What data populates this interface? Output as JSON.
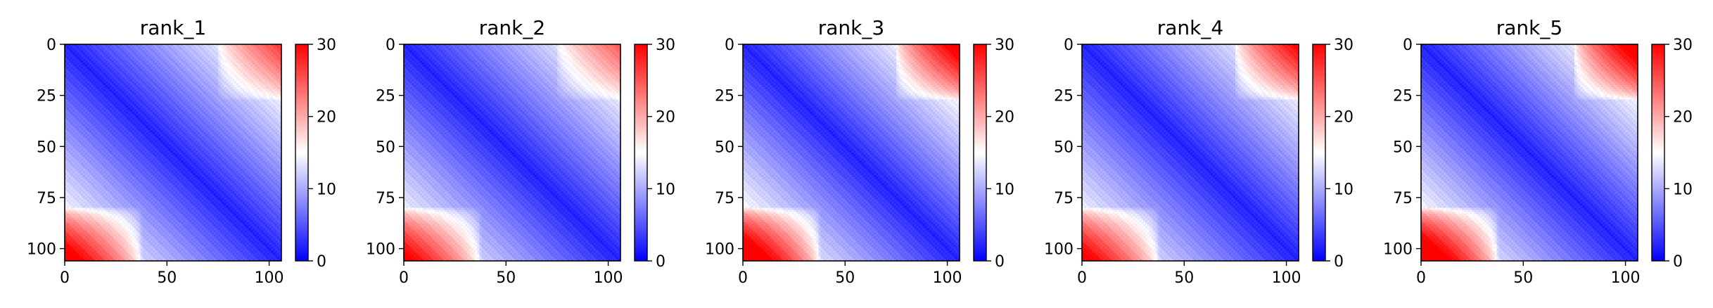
{
  "chart_data": [
    {
      "type": "heatmap",
      "title": "rank_1",
      "xlim": [
        0,
        106
      ],
      "ylim": [
        106,
        0
      ],
      "xticks": [
        0,
        50,
        100
      ],
      "yticks": [
        0,
        25,
        50,
        75,
        100
      ],
      "colorbar": {
        "min": 0,
        "max": 30,
        "ticks": [
          0,
          10,
          20,
          30
        ]
      },
      "colormap": [
        "#0000ff",
        "#ffffff",
        "#ff0000"
      ],
      "pattern": {
        "corner_low_left": 0.85,
        "corner_top_right": 0.55,
        "diag_slope": 0.18
      }
    },
    {
      "type": "heatmap",
      "title": "rank_2",
      "xlim": [
        0,
        106
      ],
      "ylim": [
        106,
        0
      ],
      "xticks": [
        0,
        50,
        100
      ],
      "yticks": [
        0,
        25,
        50,
        75,
        100
      ],
      "colorbar": {
        "min": 0,
        "max": 30,
        "ticks": [
          0,
          10,
          20,
          30
        ]
      },
      "colormap": [
        "#0000ff",
        "#ffffff",
        "#ff0000"
      ],
      "pattern": {
        "corner_low_left": 0.8,
        "corner_top_right": 0.45,
        "diag_slope": 0.16
      }
    },
    {
      "type": "heatmap",
      "title": "rank_3",
      "xlim": [
        0,
        106
      ],
      "ylim": [
        106,
        0
      ],
      "xticks": [
        0,
        50,
        100
      ],
      "yticks": [
        0,
        25,
        50,
        75,
        100
      ],
      "colorbar": {
        "min": 0,
        "max": 30,
        "ticks": [
          0,
          10,
          20,
          30
        ]
      },
      "colormap": [
        "#0000ff",
        "#ffffff",
        "#ff0000"
      ],
      "pattern": {
        "corner_low_left": 0.95,
        "corner_top_right": 0.85,
        "diag_slope": 0.22
      }
    },
    {
      "type": "heatmap",
      "title": "rank_4",
      "xlim": [
        0,
        106
      ],
      "ylim": [
        106,
        0
      ],
      "xticks": [
        0,
        50,
        100
      ],
      "yticks": [
        0,
        25,
        50,
        75,
        100
      ],
      "colorbar": {
        "min": 0,
        "max": 30,
        "ticks": [
          0,
          10,
          20,
          30
        ]
      },
      "colormap": [
        "#0000ff",
        "#ffffff",
        "#ff0000"
      ],
      "pattern": {
        "corner_low_left": 0.8,
        "corner_top_right": 0.8,
        "diag_slope": 0.17
      }
    },
    {
      "type": "heatmap",
      "title": "rank_5",
      "xlim": [
        0,
        106
      ],
      "ylim": [
        106,
        0
      ],
      "xticks": [
        0,
        50,
        100
      ],
      "yticks": [
        0,
        25,
        50,
        75,
        100
      ],
      "colorbar": {
        "min": 0,
        "max": 30,
        "ticks": [
          0,
          10,
          20,
          30
        ]
      },
      "colormap": [
        "#0000ff",
        "#ffffff",
        "#ff0000"
      ],
      "pattern": {
        "corner_low_left": 1.0,
        "corner_top_right": 0.95,
        "diag_slope": 0.2
      }
    }
  ]
}
